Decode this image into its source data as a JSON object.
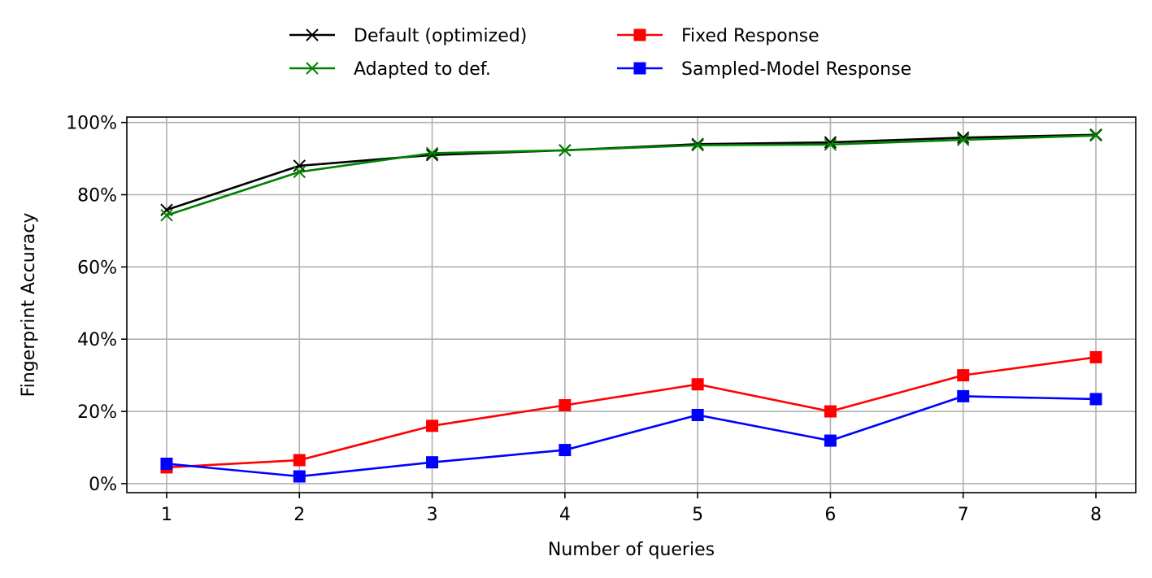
{
  "chart_data": {
    "type": "line",
    "title": "",
    "xlabel": "Number of queries",
    "ylabel": "Fingerprint Accuracy",
    "x": [
      1,
      2,
      3,
      4,
      5,
      6,
      7,
      8
    ],
    "xticks": [
      "1",
      "2",
      "3",
      "4",
      "5",
      "6",
      "7",
      "8"
    ],
    "xlim": [
      0.7,
      8.3
    ],
    "yticks": [
      0,
      20,
      40,
      60,
      80,
      100
    ],
    "ytick_labels": [
      "0%",
      "20%",
      "40%",
      "60%",
      "80%",
      "100%"
    ],
    "ylim": [
      -2.5,
      101.5
    ],
    "y_unit": "percent",
    "grid": true,
    "legend_position": "top-center, outside plot, 2 columns",
    "series": [
      {
        "name": "Default (optimized)",
        "color": "#000000",
        "marker": "x",
        "values": [
          75.8,
          88.0,
          91.0,
          92.3,
          94.0,
          94.5,
          95.8,
          96.6
        ]
      },
      {
        "name": "Adapted to def.",
        "color": "#008000",
        "marker": "x",
        "values": [
          74.3,
          86.3,
          91.5,
          92.3,
          93.7,
          93.9,
          95.2,
          96.4
        ]
      },
      {
        "name": "Fixed Response",
        "color": "#ff0000",
        "marker": "square",
        "values": [
          4.5,
          6.5,
          16.0,
          21.7,
          27.5,
          20.0,
          30.0,
          35.0
        ]
      },
      {
        "name": "Sampled-Model Response",
        "color": "#0000ff",
        "marker": "square",
        "values": [
          5.5,
          2.0,
          5.9,
          9.3,
          19.0,
          11.9,
          24.2,
          23.4
        ]
      }
    ]
  }
}
